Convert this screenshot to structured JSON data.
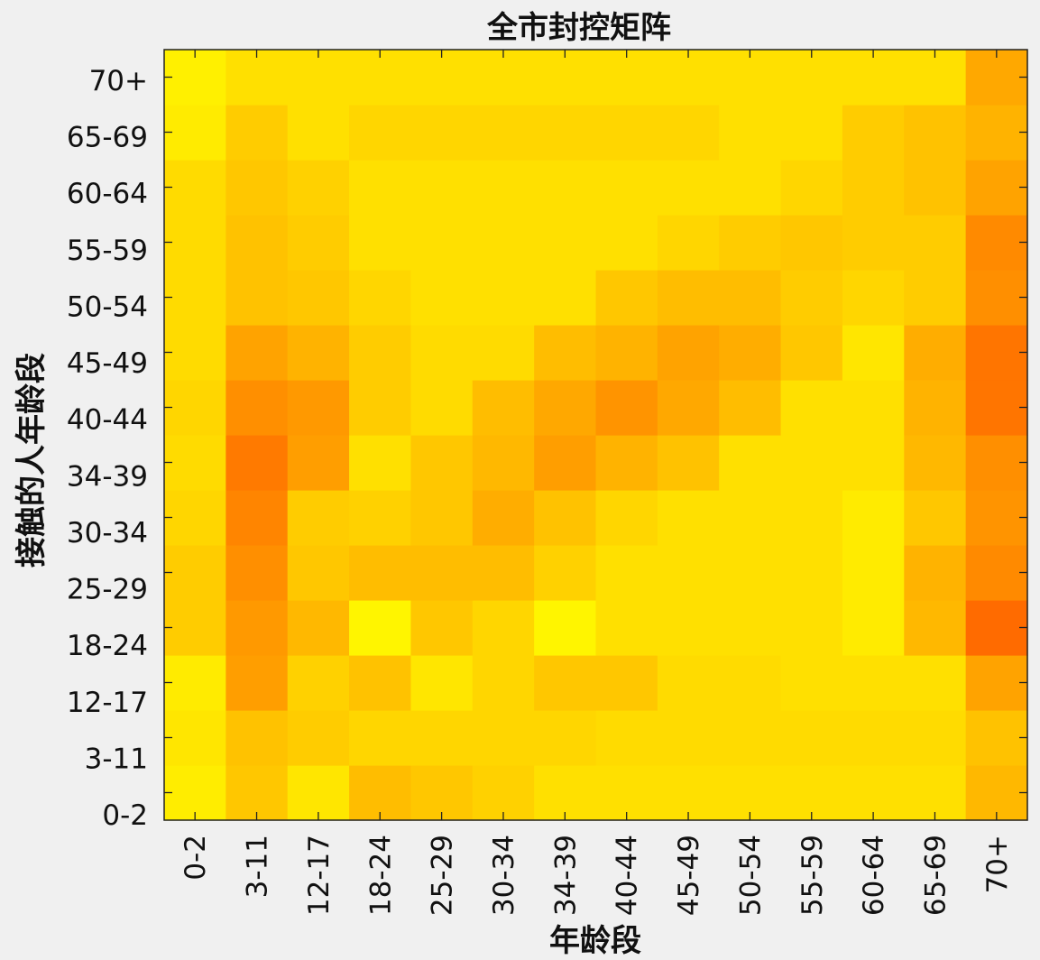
{
  "chart_data": {
    "type": "heatmap",
    "title": "全市封控矩阵",
    "xlabel": "年龄段",
    "ylabel": "接触的人年龄段",
    "x_categories": [
      "0-2",
      "3-11",
      "12-17",
      "18-24",
      "25-29",
      "30-34",
      "34-39",
      "40-44",
      "45-49",
      "50-54",
      "55-59",
      "60-64",
      "65-69",
      "70+"
    ],
    "y_categories": [
      "0-2",
      "3-11",
      "12-17",
      "18-24",
      "25-29",
      "30-34",
      "34-39",
      "40-44",
      "45-49",
      "50-54",
      "55-59",
      "60-64",
      "65-69",
      "70+"
    ],
    "colormap": "autumn",
    "values": [
      [
        0.93,
        0.78,
        0.9,
        0.74,
        0.78,
        0.82,
        0.88,
        0.88,
        0.88,
        0.88,
        0.88,
        0.88,
        0.88,
        0.72
      ],
      [
        0.9,
        0.76,
        0.8,
        0.84,
        0.84,
        0.84,
        0.84,
        0.86,
        0.86,
        0.86,
        0.86,
        0.86,
        0.86,
        0.76
      ],
      [
        0.92,
        0.62,
        0.82,
        0.76,
        0.9,
        0.84,
        0.78,
        0.78,
        0.86,
        0.86,
        0.88,
        0.88,
        0.88,
        0.64
      ],
      [
        0.8,
        0.6,
        0.72,
        0.96,
        0.78,
        0.84,
        0.96,
        0.88,
        0.88,
        0.88,
        0.88,
        0.92,
        0.72,
        0.42
      ],
      [
        0.8,
        0.56,
        0.78,
        0.74,
        0.74,
        0.74,
        0.82,
        0.88,
        0.88,
        0.88,
        0.88,
        0.92,
        0.7,
        0.54
      ],
      [
        0.84,
        0.52,
        0.8,
        0.82,
        0.78,
        0.68,
        0.76,
        0.84,
        0.88,
        0.88,
        0.88,
        0.92,
        0.78,
        0.58
      ],
      [
        0.86,
        0.48,
        0.62,
        0.88,
        0.78,
        0.72,
        0.62,
        0.7,
        0.76,
        0.88,
        0.88,
        0.88,
        0.72,
        0.56
      ],
      [
        0.84,
        0.56,
        0.6,
        0.8,
        0.86,
        0.74,
        0.66,
        0.58,
        0.66,
        0.74,
        0.88,
        0.88,
        0.7,
        0.46
      ],
      [
        0.86,
        0.64,
        0.7,
        0.8,
        0.86,
        0.86,
        0.74,
        0.7,
        0.64,
        0.68,
        0.78,
        0.9,
        0.68,
        0.46
      ],
      [
        0.86,
        0.76,
        0.78,
        0.84,
        0.88,
        0.88,
        0.88,
        0.78,
        0.74,
        0.74,
        0.8,
        0.84,
        0.8,
        0.56
      ],
      [
        0.86,
        0.76,
        0.8,
        0.88,
        0.88,
        0.88,
        0.88,
        0.88,
        0.84,
        0.8,
        0.78,
        0.8,
        0.8,
        0.54
      ],
      [
        0.86,
        0.78,
        0.82,
        0.88,
        0.88,
        0.88,
        0.88,
        0.88,
        0.88,
        0.88,
        0.84,
        0.8,
        0.76,
        0.64
      ],
      [
        0.92,
        0.8,
        0.88,
        0.84,
        0.84,
        0.84,
        0.84,
        0.84,
        0.84,
        0.88,
        0.88,
        0.8,
        0.76,
        0.7
      ],
      [
        0.94,
        0.88,
        0.88,
        0.88,
        0.88,
        0.88,
        0.88,
        0.88,
        0.88,
        0.88,
        0.88,
        0.88,
        0.88,
        0.66
      ]
    ]
  }
}
